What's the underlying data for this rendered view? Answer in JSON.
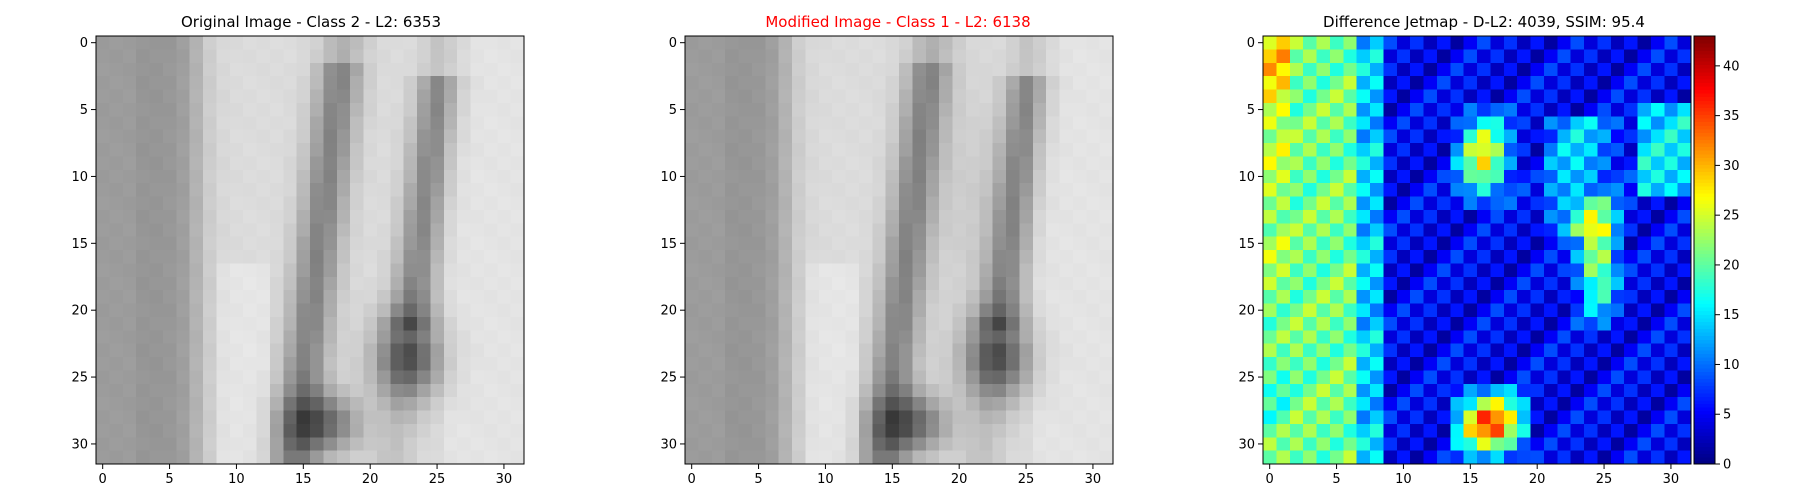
{
  "panels": [
    {
      "title": "Original Image - Class 2 - L2: 6353",
      "title_color": "#000000"
    },
    {
      "title": "Modified Image - Class 1 - L2: 6138",
      "title_color": "#ff0000"
    },
    {
      "title": "Difference Jetmap - D-L2: 4039, SSIM: 95.4",
      "title_color": "#000000"
    }
  ],
  "chart_data": [
    {
      "type": "heatmap",
      "title": "Original Image - Class 2 - L2: 6353",
      "colormap": "gray",
      "xlim": [
        -0.5,
        31.5
      ],
      "ylim": [
        31.5,
        -0.5
      ],
      "x_ticks": [
        0,
        5,
        10,
        15,
        20,
        25,
        30
      ],
      "y_ticks": [
        0,
        5,
        10,
        15,
        20,
        25,
        30
      ],
      "grid": false
    },
    {
      "type": "heatmap",
      "title": "Modified Image - Class 1 - L2: 6138",
      "colormap": "gray",
      "xlim": [
        -0.5,
        31.5
      ],
      "ylim": [
        31.5,
        -0.5
      ],
      "x_ticks": [
        0,
        5,
        10,
        15,
        20,
        25,
        30
      ],
      "y_ticks": [
        0,
        5,
        10,
        15,
        20,
        25,
        30
      ],
      "grid": false
    },
    {
      "type": "heatmap",
      "title": "Difference Jetmap - D-L2: 4039, SSIM: 95.4",
      "colormap": "jet",
      "xlim": [
        -0.5,
        31.5
      ],
      "ylim": [
        31.5,
        -0.5
      ],
      "x_ticks": [
        0,
        5,
        10,
        15,
        20,
        25,
        30
      ],
      "y_ticks": [
        0,
        5,
        10,
        15,
        20,
        25,
        30
      ],
      "colorbar": {
        "range": [
          0,
          43
        ],
        "ticks": [
          0,
          5,
          10,
          15,
          20,
          25,
          30,
          35,
          40
        ]
      },
      "grid": false
    }
  ]
}
